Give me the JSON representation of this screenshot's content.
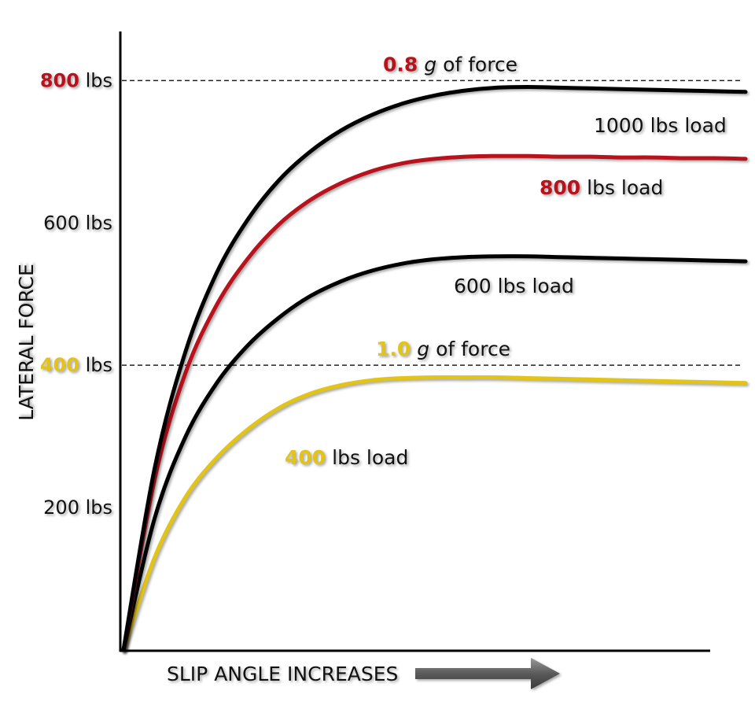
{
  "chart_data": {
    "type": "line",
    "title": "",
    "xlabel": "SLIP ANGLE INCREASES",
    "ylabel": "LATERAL FORCE",
    "xlim": [
      0,
      100
    ],
    "ylim": [
      0,
      880
    ],
    "y_ticks": [
      {
        "value": 800,
        "num": "800",
        "unit": " lbs",
        "color": "#b8121c"
      },
      {
        "value": 600,
        "num": "600 lbs",
        "unit": "",
        "color": ""
      },
      {
        "value": 400,
        "num": "400",
        "unit": " lbs",
        "color": "#e2c318"
      },
      {
        "value": 200,
        "num": "200 lbs",
        "unit": "",
        "color": ""
      }
    ],
    "reference_lines": [
      {
        "value": 800,
        "num": "0.8",
        "g": " g",
        "rest": " of force",
        "color": "#b8121c"
      },
      {
        "value": 400,
        "num": "1.0",
        "g": " g",
        "rest": " of force",
        "color": "#e2c318"
      }
    ],
    "series": [
      {
        "name": "1000 lbs load",
        "num": "1000",
        "rest": " lbs load",
        "num_color": "",
        "color": "#000000",
        "x": [
          0,
          5,
          10,
          15,
          20,
          25,
          30,
          35,
          40,
          45,
          50,
          55,
          60,
          65,
          70,
          75,
          80,
          85,
          90,
          95,
          100
        ],
        "y": [
          0,
          255,
          420,
          530,
          605,
          660,
          700,
          730,
          752,
          768,
          779,
          786,
          790,
          791,
          790,
          789,
          788,
          787,
          786,
          785,
          784
        ]
      },
      {
        "name": "800 lbs load",
        "num": "800",
        "rest": " lbs load",
        "num_color": "#b8121c",
        "color": "#b8121c",
        "x": [
          0,
          5,
          10,
          15,
          20,
          25,
          30,
          35,
          40,
          45,
          50,
          55,
          60,
          65,
          70,
          75,
          80,
          85,
          90,
          95,
          100
        ],
        "y": [
          0,
          240,
          390,
          485,
          550,
          598,
          632,
          656,
          673,
          684,
          690,
          693,
          694,
          694,
          693,
          693,
          692,
          692,
          691,
          691,
          690
        ]
      },
      {
        "name": "600 lbs load",
        "num": "600",
        "rest": " lbs load",
        "num_color": "",
        "color": "#000000",
        "x": [
          0,
          5,
          10,
          15,
          20,
          25,
          30,
          35,
          40,
          45,
          50,
          55,
          60,
          65,
          70,
          75,
          80,
          85,
          90,
          95,
          100
        ],
        "y": [
          0,
          185,
          300,
          375,
          428,
          467,
          497,
          518,
          533,
          543,
          549,
          552,
          553,
          553,
          552,
          551,
          550,
          549,
          548,
          547,
          546
        ]
      },
      {
        "name": "400 lbs load",
        "num": "400",
        "rest": " lbs load",
        "num_color": "#e2c318",
        "color": "#e2c318",
        "x": [
          0,
          5,
          10,
          15,
          20,
          25,
          30,
          35,
          40,
          45,
          50,
          55,
          60,
          65,
          70,
          75,
          80,
          85,
          90,
          95,
          100
        ],
        "y": [
          0,
          130,
          215,
          270,
          310,
          340,
          360,
          372,
          379,
          382,
          383,
          383,
          383,
          382,
          381,
          380,
          379,
          378,
          377,
          376,
          375
        ]
      }
    ],
    "grid": false,
    "legend": "inline labels"
  }
}
